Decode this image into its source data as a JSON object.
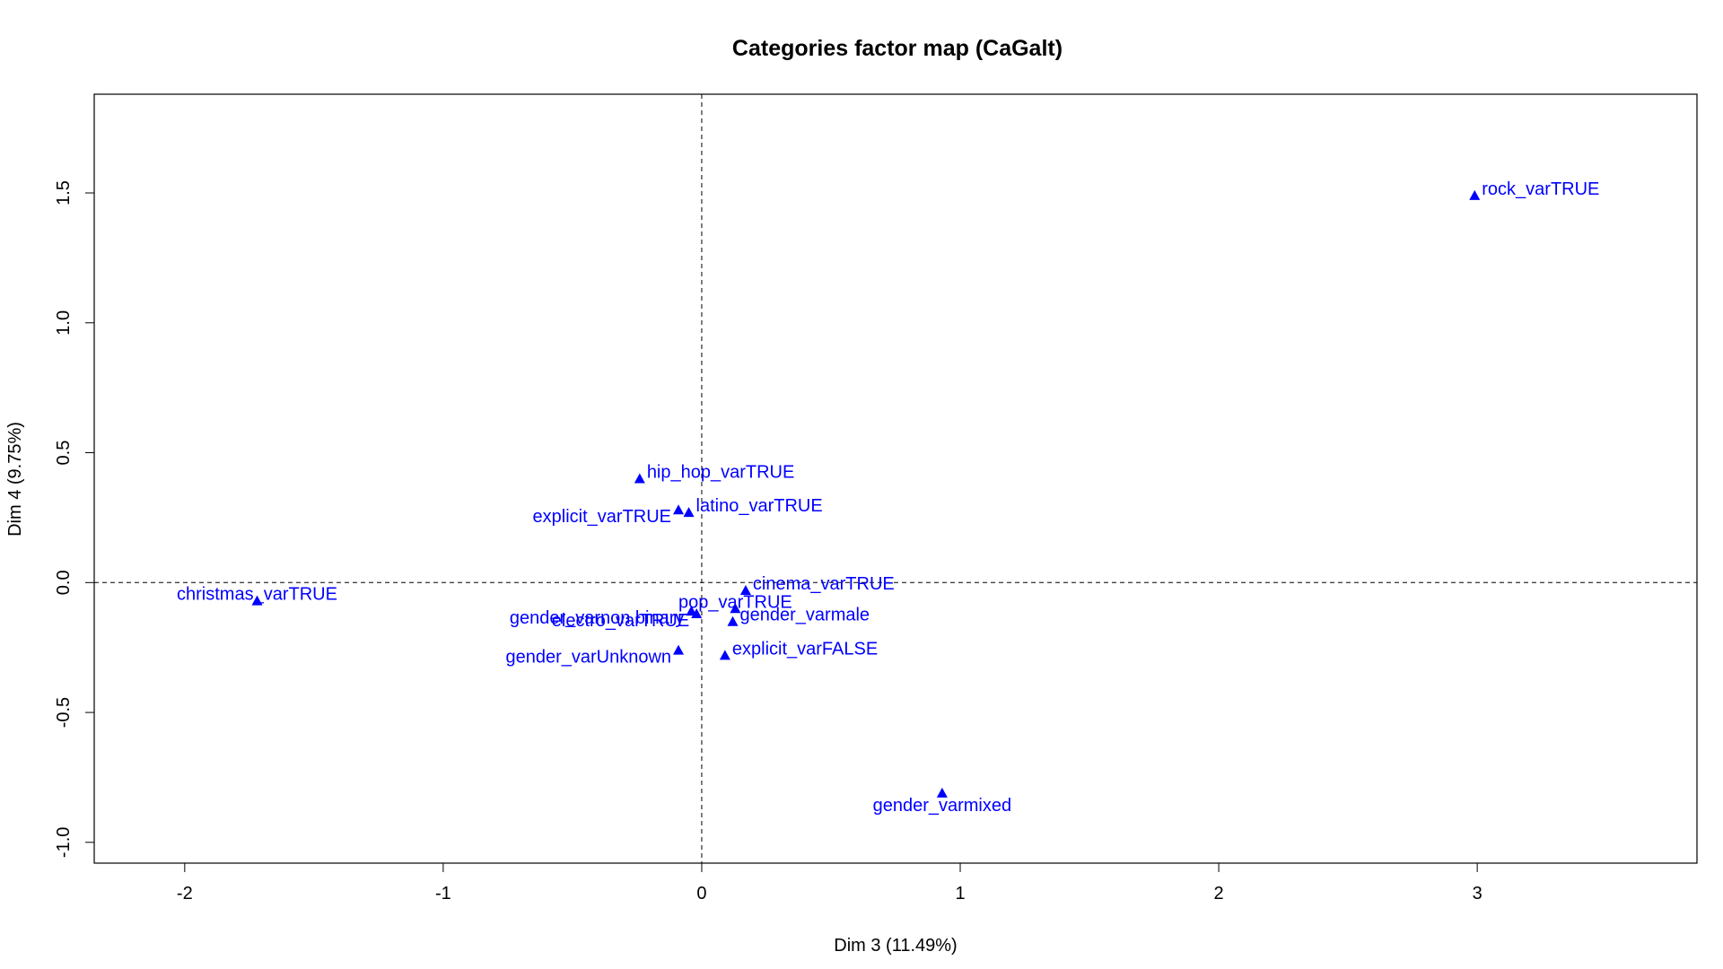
{
  "chart_data": {
    "type": "scatter",
    "title": "Categories factor map (CaGalt)",
    "xlabel": "Dim 3 (11.49%)",
    "ylabel": "Dim 4 (9.75%)",
    "xlim": [
      -2.35,
      3.85
    ],
    "ylim": [
      -1.08,
      1.88
    ],
    "x_ticks": [
      -2,
      -1,
      0,
      1,
      2,
      3
    ],
    "y_ticks": [
      -1.0,
      -0.5,
      0.0,
      0.5,
      1.0,
      1.5
    ],
    "x_tick_labels": [
      "-2",
      "-1",
      "0",
      "1",
      "2",
      "3"
    ],
    "y_tick_labels": [
      "-1.0",
      "-0.5",
      "0.0",
      "0.5",
      "1.0",
      "1.5"
    ],
    "reference_lines": {
      "x": 0,
      "y": 0,
      "style": "dashed"
    },
    "grid": false,
    "marker": "triangle",
    "color": "#0000ff",
    "points": [
      {
        "label": "rock_varTRUE",
        "x": 2.99,
        "y": 1.49,
        "label_pos": "right"
      },
      {
        "label": "hip_hop_varTRUE",
        "x": -0.24,
        "y": 0.4,
        "label_pos": "right"
      },
      {
        "label": "explicit_varTRUE",
        "x": -0.09,
        "y": 0.28,
        "label_pos": "left"
      },
      {
        "label": "latino_varTRUE",
        "x": -0.05,
        "y": 0.27,
        "label_pos": "right"
      },
      {
        "label": "christmas_varTRUE",
        "x": -1.72,
        "y": -0.07,
        "label_pos": "center"
      },
      {
        "label": "cinema_varTRUE",
        "x": 0.17,
        "y": -0.03,
        "label_pos": "right"
      },
      {
        "label": "gender_varnon.binary",
        "x": -0.04,
        "y": -0.11,
        "label_pos": "left"
      },
      {
        "label": "electro_varTRUE",
        "x": -0.02,
        "y": -0.12,
        "label_pos": "left"
      },
      {
        "label": "pop_varTRUE",
        "x": 0.13,
        "y": -0.1,
        "label_pos": "center"
      },
      {
        "label": "gender_varmale",
        "x": 0.12,
        "y": -0.15,
        "label_pos": "right"
      },
      {
        "label": "gender_varUnknown",
        "x": -0.09,
        "y": -0.26,
        "label_pos": "left"
      },
      {
        "label": "explicit_varFALSE",
        "x": 0.09,
        "y": -0.28,
        "label_pos": "right"
      },
      {
        "label": "gender_varmixed",
        "x": 0.93,
        "y": -0.81,
        "label_pos": "below"
      }
    ]
  }
}
